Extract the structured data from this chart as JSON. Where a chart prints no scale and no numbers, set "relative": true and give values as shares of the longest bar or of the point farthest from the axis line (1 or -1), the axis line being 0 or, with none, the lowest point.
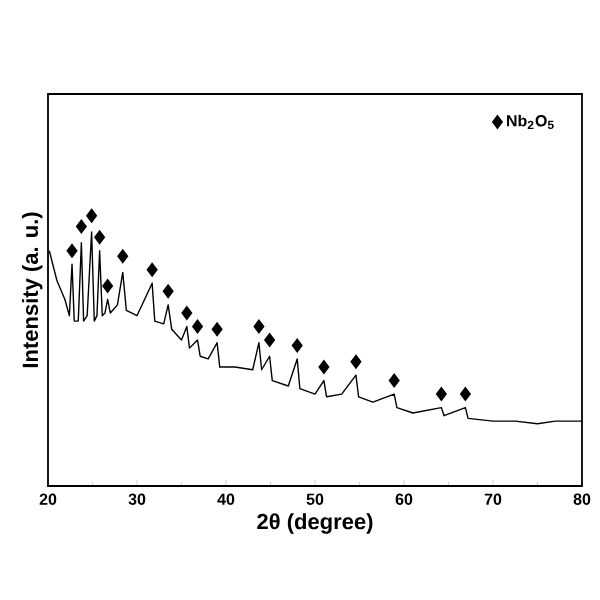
{
  "chart_data": {
    "type": "line",
    "xlabel": "2θ (degree)",
    "ylabel": "Intensity (a. u.)",
    "relative": true,
    "tick_labels": "x",
    "legend": "top right",
    "grid": false,
    "xlim": [
      20,
      80
    ],
    "xticks": [
      20,
      30,
      40,
      50,
      60,
      70,
      80
    ],
    "series": [
      {
        "color": "#000000",
        "marker": "none",
        "line_style": "solid",
        "x": [
          20.15,
          21.0,
          21.9,
          22.4,
          22.7,
          22.95,
          23.4,
          23.75,
          24.0,
          24.4,
          24.9,
          25.2,
          25.5,
          25.8,
          26.1,
          26.4,
          26.7,
          27.0,
          27.8,
          28.4,
          28.8,
          30.0,
          31.7,
          32.0,
          33.0,
          33.5,
          33.9,
          35.0,
          35.6,
          35.9,
          36.8,
          37.1,
          38.0,
          39.0,
          39.3,
          41.0,
          43.0,
          43.7,
          44.0,
          44.9,
          45.2,
          47.0,
          48.0,
          48.3,
          50.0,
          51.0,
          51.3,
          53.0,
          54.6,
          54.9,
          56.5,
          58.9,
          59.2,
          61.0,
          64.2,
          64.5,
          66.9,
          67.2,
          70,
          72.5,
          75,
          77,
          80
        ],
        "values": [
          0.87,
          0.76,
          0.69,
          0.63,
          0.82,
          0.61,
          0.61,
          0.9,
          0.61,
          0.63,
          0.94,
          0.61,
          0.63,
          0.87,
          0.63,
          0.64,
          0.69,
          0.64,
          0.67,
          0.79,
          0.65,
          0.63,
          0.75,
          0.61,
          0.6,
          0.67,
          0.58,
          0.54,
          0.59,
          0.51,
          0.54,
          0.48,
          0.47,
          0.53,
          0.44,
          0.44,
          0.43,
          0.53,
          0.43,
          0.48,
          0.39,
          0.37,
          0.47,
          0.36,
          0.34,
          0.39,
          0.33,
          0.34,
          0.41,
          0.33,
          0.31,
          0.34,
          0.29,
          0.27,
          0.29,
          0.26,
          0.29,
          0.25,
          0.24,
          0.24,
          0.23,
          0.24,
          0.24
        ]
      },
      {
        "type": "scatter",
        "name": "Nb$_{2}$O$_{5}$",
        "color": "#000000",
        "marker": "diamond",
        "x": [
          22.7,
          23.75,
          24.9,
          25.8,
          26.7,
          28.4,
          31.7,
          33.5,
          35.6,
          36.8,
          39.0,
          43.7,
          44.9,
          48.0,
          51.0,
          54.6,
          58.9,
          64.2,
          66.9
        ],
        "values": [
          0.87,
          0.96,
          1.0,
          0.92,
          0.74,
          0.85,
          0.8,
          0.72,
          0.64,
          0.59,
          0.58,
          0.59,
          0.54,
          0.52,
          0.44,
          0.46,
          0.39,
          0.34,
          0.34
        ]
      }
    ]
  }
}
